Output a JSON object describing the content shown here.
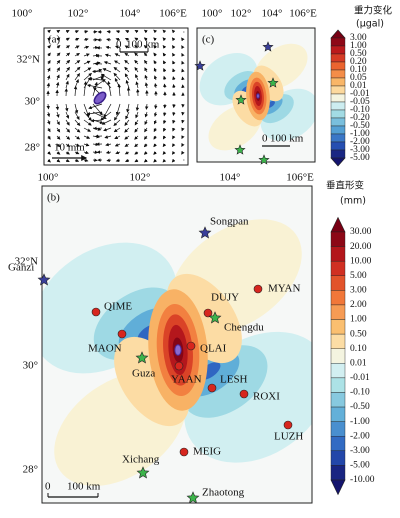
{
  "panel_a": {
    "label": "(a)",
    "top_ticks": [
      "100°",
      "102°",
      "104°",
      "106°E"
    ],
    "left_ticks": [
      "32°N",
      "30°",
      "28°"
    ],
    "scale_zero": "0",
    "scale_label": "100 km",
    "vector_label": "10 mm"
  },
  "panel_c": {
    "label": "(c)",
    "top_ticks": [
      "100°",
      "102°",
      "104°",
      "106°E"
    ],
    "scale_zero": "0",
    "scale_label": "100 km"
  },
  "gravity_legend": {
    "title": "重力变化",
    "unit": "(μgal)",
    "labels": [
      "3.00",
      "1.00",
      "0.50",
      "0.20",
      "0.10",
      "0.05",
      "0.01",
      "-0.01",
      "-0.05",
      "-0.10",
      "-0.20",
      "-0.50",
      "-1.00",
      "-2.00",
      "-3.00",
      "-5.00"
    ]
  },
  "panel_b": {
    "label": "(b)",
    "top_ticks": [
      "100°",
      "102°",
      "104°",
      "106°E"
    ],
    "left_ticks": [
      "32°N",
      "30°",
      "28°"
    ],
    "scale_zero": "0",
    "scale_label": "100 km",
    "stations": [
      "Songpan",
      "Ganzi",
      "MYAN",
      "QIME",
      "DUJY",
      "Chengdu",
      "MAON",
      "QLAI",
      "Guza",
      "YAAN",
      "LESH",
      "ROXI",
      "LUZH",
      "MEIG",
      "Xichang",
      "Zhaotong"
    ]
  },
  "displacement_legend": {
    "title": "垂直形变",
    "unit": "(mm)",
    "labels": [
      "30.00",
      "20.00",
      "10.00",
      "5.00",
      "3.00",
      "2.00",
      "1.00",
      "0.50",
      "0.10",
      "0.01",
      "-0.01",
      "-0.10",
      "-0.50",
      "-1.00",
      "-2.00",
      "-3.00",
      "-5.00",
      "-10.00"
    ]
  }
}
